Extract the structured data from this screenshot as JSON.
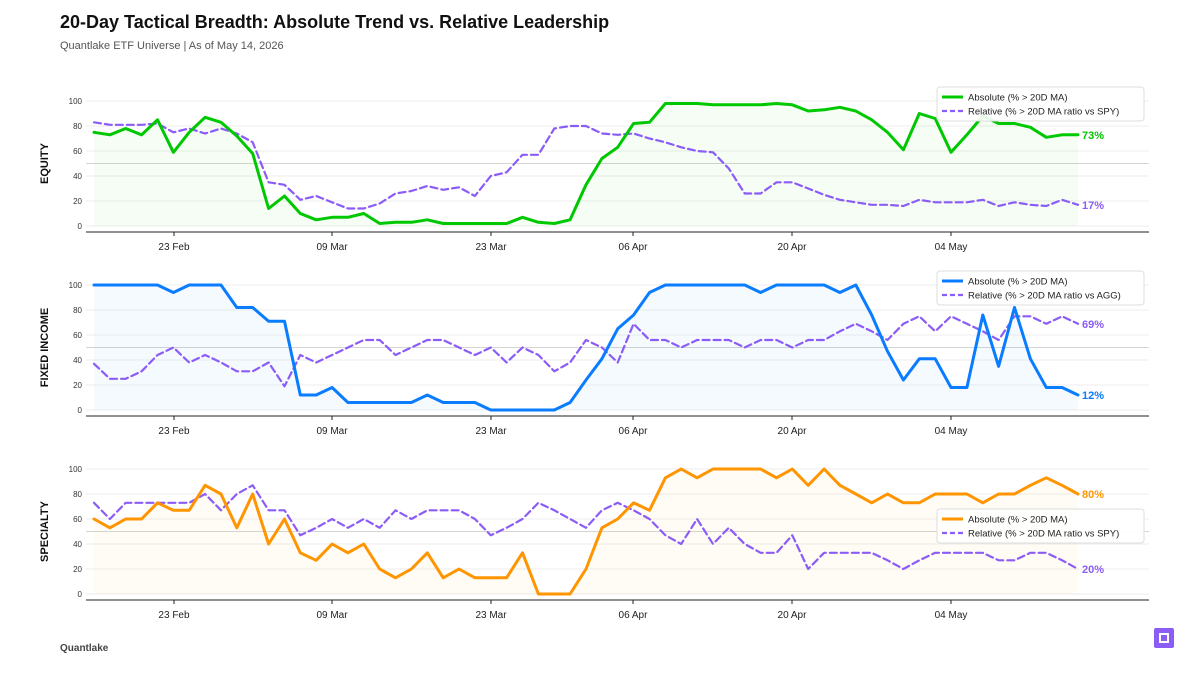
{
  "header": {
    "title": "20-Day Tactical Breadth: Absolute Trend vs. Relative Leadership",
    "subtitle": "Quantlake ETF Universe  |  As of May 14, 2026"
  },
  "footer": {
    "brand": "Quantlake"
  },
  "colors": {
    "purple": "#8b5cf6",
    "equity": "#00c800",
    "fixed_income": "#0a7cff",
    "specialty": "#ff9500"
  },
  "chart_data": [
    {
      "type": "line",
      "ylabel": "EQUITY",
      "ylim": [
        0,
        100
      ],
      "x_ticks": [
        "23 Feb",
        "09 Mar",
        "23 Mar",
        "06 Apr",
        "20 Apr",
        "04 May"
      ],
      "legend_position": "top-right",
      "series": [
        {
          "name": "Absolute (% > 20D MA)",
          "end_label": "73%",
          "color": "#00c800",
          "values": [
            75,
            73,
            78,
            73,
            85,
            59,
            75,
            87,
            83,
            72,
            58,
            14,
            24,
            10,
            5,
            7,
            7,
            10,
            2,
            3,
            3,
            5,
            2,
            2,
            2,
            2,
            2,
            7,
            3,
            2,
            5,
            33,
            54,
            63,
            82,
            83,
            98,
            98,
            98,
            97,
            97,
            97,
            97,
            98,
            97,
            92,
            93,
            95,
            92,
            85,
            75,
            61,
            90,
            86,
            59,
            73,
            88,
            82,
            82,
            79,
            71,
            73,
            73
          ]
        },
        {
          "name": "Relative (% > 20D MA ratio vs SPY)",
          "end_label": "17%",
          "color": "#8b5cf6",
          "values": [
            83,
            81,
            81,
            81,
            82,
            75,
            78,
            74,
            78,
            74,
            67,
            35,
            33,
            21,
            24,
            19,
            14,
            14,
            18,
            26,
            28,
            32,
            29,
            31,
            24,
            40,
            43,
            57,
            57,
            78,
            80,
            80,
            74,
            73,
            74,
            70,
            67,
            63,
            60,
            59,
            46,
            26,
            26,
            35,
            35,
            30,
            25,
            21,
            19,
            17,
            17,
            16,
            21,
            19,
            19,
            19,
            21,
            16,
            19,
            17,
            16,
            21,
            17
          ]
        }
      ]
    },
    {
      "type": "line",
      "ylabel": "FIXED INCOME",
      "ylim": [
        0,
        100
      ],
      "x_ticks": [
        "23 Feb",
        "09 Mar",
        "23 Mar",
        "06 Apr",
        "20 Apr",
        "04 May"
      ],
      "legend_position": "top-right",
      "series": [
        {
          "name": "Absolute (% > 20D MA)",
          "end_label": "12%",
          "color": "#0a7cff",
          "values": [
            100,
            100,
            100,
            100,
            100,
            94,
            100,
            100,
            100,
            82,
            82,
            71,
            71,
            12,
            12,
            18,
            6,
            6,
            6,
            6,
            6,
            12,
            6,
            6,
            6,
            0,
            0,
            0,
            0,
            0,
            6,
            24,
            41,
            65,
            76,
            94,
            100,
            100,
            100,
            100,
            100,
            100,
            94,
            100,
            100,
            100,
            100,
            94,
            100,
            76,
            47,
            24,
            41,
            41,
            18,
            18,
            76,
            35,
            82,
            41,
            18,
            18,
            12
          ]
        },
        {
          "name": "Relative (% > 20D MA ratio vs AGG)",
          "end_label": "69%",
          "color": "#8b5cf6",
          "values": [
            37,
            25,
            25,
            31,
            44,
            50,
            38,
            44,
            38,
            31,
            31,
            38,
            19,
            44,
            38,
            44,
            50,
            56,
            56,
            44,
            50,
            56,
            56,
            50,
            44,
            50,
            38,
            50,
            44,
            31,
            38,
            56,
            50,
            38,
            69,
            56,
            56,
            50,
            56,
            56,
            56,
            50,
            56,
            56,
            50,
            56,
            56,
            63,
            69,
            63,
            56,
            69,
            75,
            63,
            75,
            69,
            63,
            56,
            75,
            75,
            69,
            75,
            69
          ]
        }
      ]
    },
    {
      "type": "line",
      "ylabel": "SPECIALTY",
      "ylim": [
        0,
        100
      ],
      "x_ticks": [
        "23 Feb",
        "09 Mar",
        "23 Mar",
        "06 Apr",
        "20 Apr",
        "04 May"
      ],
      "legend_position": "right",
      "series": [
        {
          "name": "Absolute (% > 20D MA)",
          "end_label": "80%",
          "color": "#ff9500",
          "values": [
            60,
            53,
            60,
            60,
            73,
            67,
            67,
            87,
            80,
            53,
            80,
            40,
            60,
            33,
            27,
            40,
            33,
            40,
            20,
            13,
            20,
            33,
            13,
            20,
            13,
            13,
            13,
            33,
            0,
            0,
            0,
            20,
            53,
            60,
            73,
            67,
            93,
            100,
            93,
            100,
            100,
            100,
            100,
            93,
            100,
            87,
            100,
            87,
            80,
            73,
            80,
            73,
            73,
            80,
            80,
            80,
            73,
            80,
            80,
            87,
            93,
            87,
            80
          ]
        },
        {
          "name": "Relative (% > 20D MA ratio vs SPY)",
          "end_label": "20%",
          "color": "#8b5cf6",
          "values": [
            73,
            60,
            73,
            73,
            73,
            73,
            73,
            80,
            67,
            80,
            87,
            67,
            67,
            47,
            53,
            60,
            53,
            60,
            53,
            67,
            60,
            67,
            67,
            67,
            60,
            47,
            53,
            60,
            73,
            67,
            60,
            53,
            67,
            73,
            67,
            60,
            47,
            40,
            60,
            40,
            53,
            40,
            33,
            33,
            47,
            20,
            33,
            33,
            33,
            33,
            27,
            20,
            27,
            33,
            33,
            33,
            33,
            27,
            27,
            33,
            33,
            27,
            20
          ]
        }
      ]
    }
  ]
}
